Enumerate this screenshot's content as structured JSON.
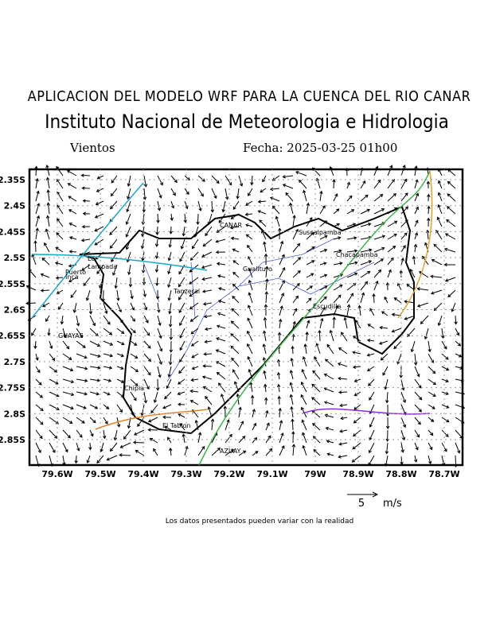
{
  "header": {
    "title": "APLICACION DEL MODELO WRF PARA LA CUENCA DEL RIO CANAR",
    "subtitle": "Instituto Nacional de Meteorologia e Hidrologia",
    "variable": "Vientos",
    "date": "Fecha: 2025-03-25 01h00"
  },
  "map": {
    "lat_labels": [
      "2.35S",
      "2.4S",
      "2.45S",
      "2.5S",
      "2.55S",
      "2.6S",
      "2.65S",
      "2.7S",
      "2.75S",
      "2.8S",
      "2.85S"
    ],
    "lon_labels": [
      "79.6W",
      "79.5W",
      "79.4W",
      "79.3W",
      "79.2W",
      "79.1W",
      "79W",
      "78.9W",
      "78.8W",
      "78.7W"
    ],
    "places": [
      "CANAR",
      "Suscalpamba",
      "Chacapamba",
      "Guallturo",
      "Tanzeral",
      "Escudilla",
      "Lo",
      "Lampada",
      "Puerto",
      "Inca",
      "GUAYAS",
      "Chipia",
      "El Tablon",
      "AZUAY"
    ]
  },
  "legend": {
    "value": "5",
    "unit": "m/s"
  },
  "footer": "Los datos presentados pueden variar con la realidad"
}
